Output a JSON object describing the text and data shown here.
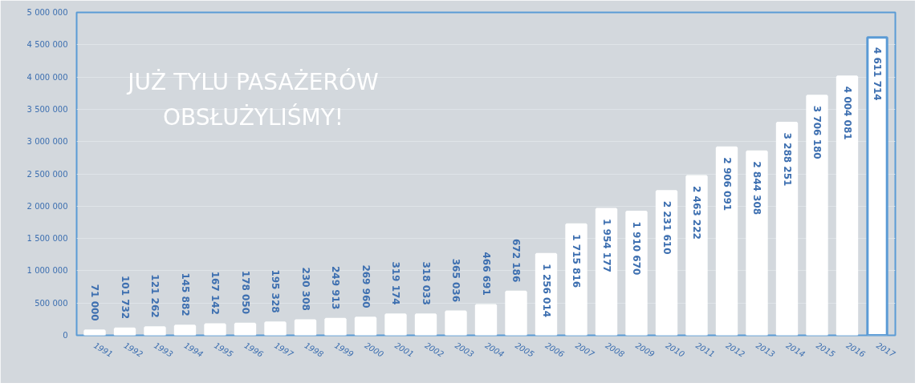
{
  "chart_data": {
    "type": "bar",
    "title": "JUŻ TYLU PASAŻERÓW OBSŁUŻYLIŚMY!",
    "categories": [
      "1991",
      "1992",
      "1993",
      "1994",
      "1995",
      "1996",
      "1997",
      "1998",
      "1999",
      "2000",
      "2001",
      "2002",
      "2003",
      "2004",
      "2005",
      "2006",
      "2007",
      "2008",
      "2009",
      "2010",
      "2011",
      "2012",
      "2013",
      "2014",
      "2015",
      "2016",
      "2017"
    ],
    "values": [
      71000,
      101732,
      121262,
      145882,
      167142,
      178050,
      195328,
      230308,
      249913,
      269960,
      319174,
      318033,
      365036,
      466691,
      672186,
      1256014,
      1715816,
      1954177,
      1910670,
      2231610,
      2463222,
      2906091,
      2844308,
      3288251,
      3706180,
      4004081,
      4611714
    ],
    "value_labels": [
      "71 000",
      "101 732",
      "121 262",
      "145 882",
      "167 142",
      "178 050",
      "195 328",
      "230 308",
      "249 913",
      "269 960",
      "319 174",
      "318 033",
      "365 036",
      "466 691",
      "672 186",
      "1 256 014",
      "1 715 816",
      "1 954 177",
      "1 910 670",
      "2 231 610",
      "2 463 222",
      "2 906 091",
      "2 844 308",
      "3 288 251",
      "3 706 180",
      "4 004 081",
      "4 611 714"
    ],
    "colors": [
      "#ffffff",
      "#ffffff",
      "#ffffff",
      "#ffffff",
      "#ffffff",
      "#ffffff",
      "#ffffff",
      "#ffffff",
      "#ffffff",
      "#ffffff",
      "#ffffff",
      "#ffffff",
      "#ffffff",
      "#ffffff",
      "#ffffff",
      "#ffffff",
      "#ffffff",
      "#ffffff",
      "#ffffff",
      "#ffffff",
      "#ffffff",
      "#ffffff",
      "#ffffff",
      "#ffffff",
      "#ffffff",
      "#ffffff",
      "#5b9bd5"
    ],
    "ylim": [
      0,
      5000000
    ],
    "yticks": [
      0,
      {
        "value": 500000,
        "label": "500 000"
      },
      {
        "value": 1000000,
        "label": "1 000 000"
      },
      {
        "value": 1500000,
        "label": "1 500 000"
      },
      {
        "value": 2000000,
        "label": "2 000 000"
      },
      {
        "value": 2500000,
        "label": "2 500 000"
      },
      {
        "value": 3000000,
        "label": "3 000 000"
      },
      {
        "value": 3500000,
        "label": "3 500 000"
      },
      {
        "value": 4000000,
        "label": "4 000 000"
      },
      {
        "value": 4500000,
        "label": "4 500 000"
      },
      {
        "value": 5000000,
        "label": "5 000 000"
      }
    ],
    "grid": "y"
  }
}
